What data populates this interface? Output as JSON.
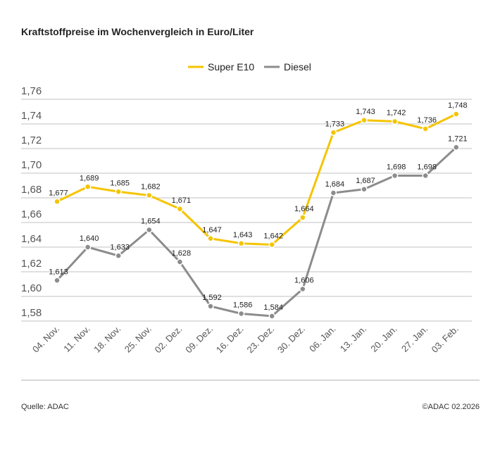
{
  "chart_data": {
    "type": "line",
    "title": "Kraftstoffpreise im Wochenvergleich in Euro/Liter",
    "categories": [
      "04. Nov.",
      "11. Nov.",
      "18. Nov.",
      "25. Nov.",
      "02. Dez.",
      "09. Dez.",
      "16. Dez.",
      "23. Dez.",
      "30. Dez.",
      "06. Jan.",
      "13. Jan.",
      "20. Jan.",
      "27. Jan.",
      "03. Feb."
    ],
    "series": [
      {
        "name": "Super E10",
        "color": "#f5c400",
        "values": [
          1.677,
          1.689,
          1.685,
          1.682,
          1.671,
          1.647,
          1.643,
          1.642,
          1.664,
          1.733,
          1.743,
          1.742,
          1.736,
          1.748
        ]
      },
      {
        "name": "Diesel",
        "color": "#8c8c8c",
        "values": [
          1.613,
          1.64,
          1.633,
          1.654,
          1.628,
          1.592,
          1.586,
          1.584,
          1.606,
          1.684,
          1.687,
          1.698,
          1.698,
          1.721
        ]
      }
    ],
    "yticks": [
      "1,58",
      "1,60",
      "1,62",
      "1,64",
      "1,66",
      "1,68",
      "1,70",
      "1,72",
      "1,74",
      "1,76"
    ],
    "ylim": [
      1.58,
      1.76
    ],
    "grid": true,
    "legend": "top-center",
    "data_labels": true
  },
  "footer": {
    "source": "Quelle: ADAC",
    "copyright": "©ADAC 02.2026"
  }
}
